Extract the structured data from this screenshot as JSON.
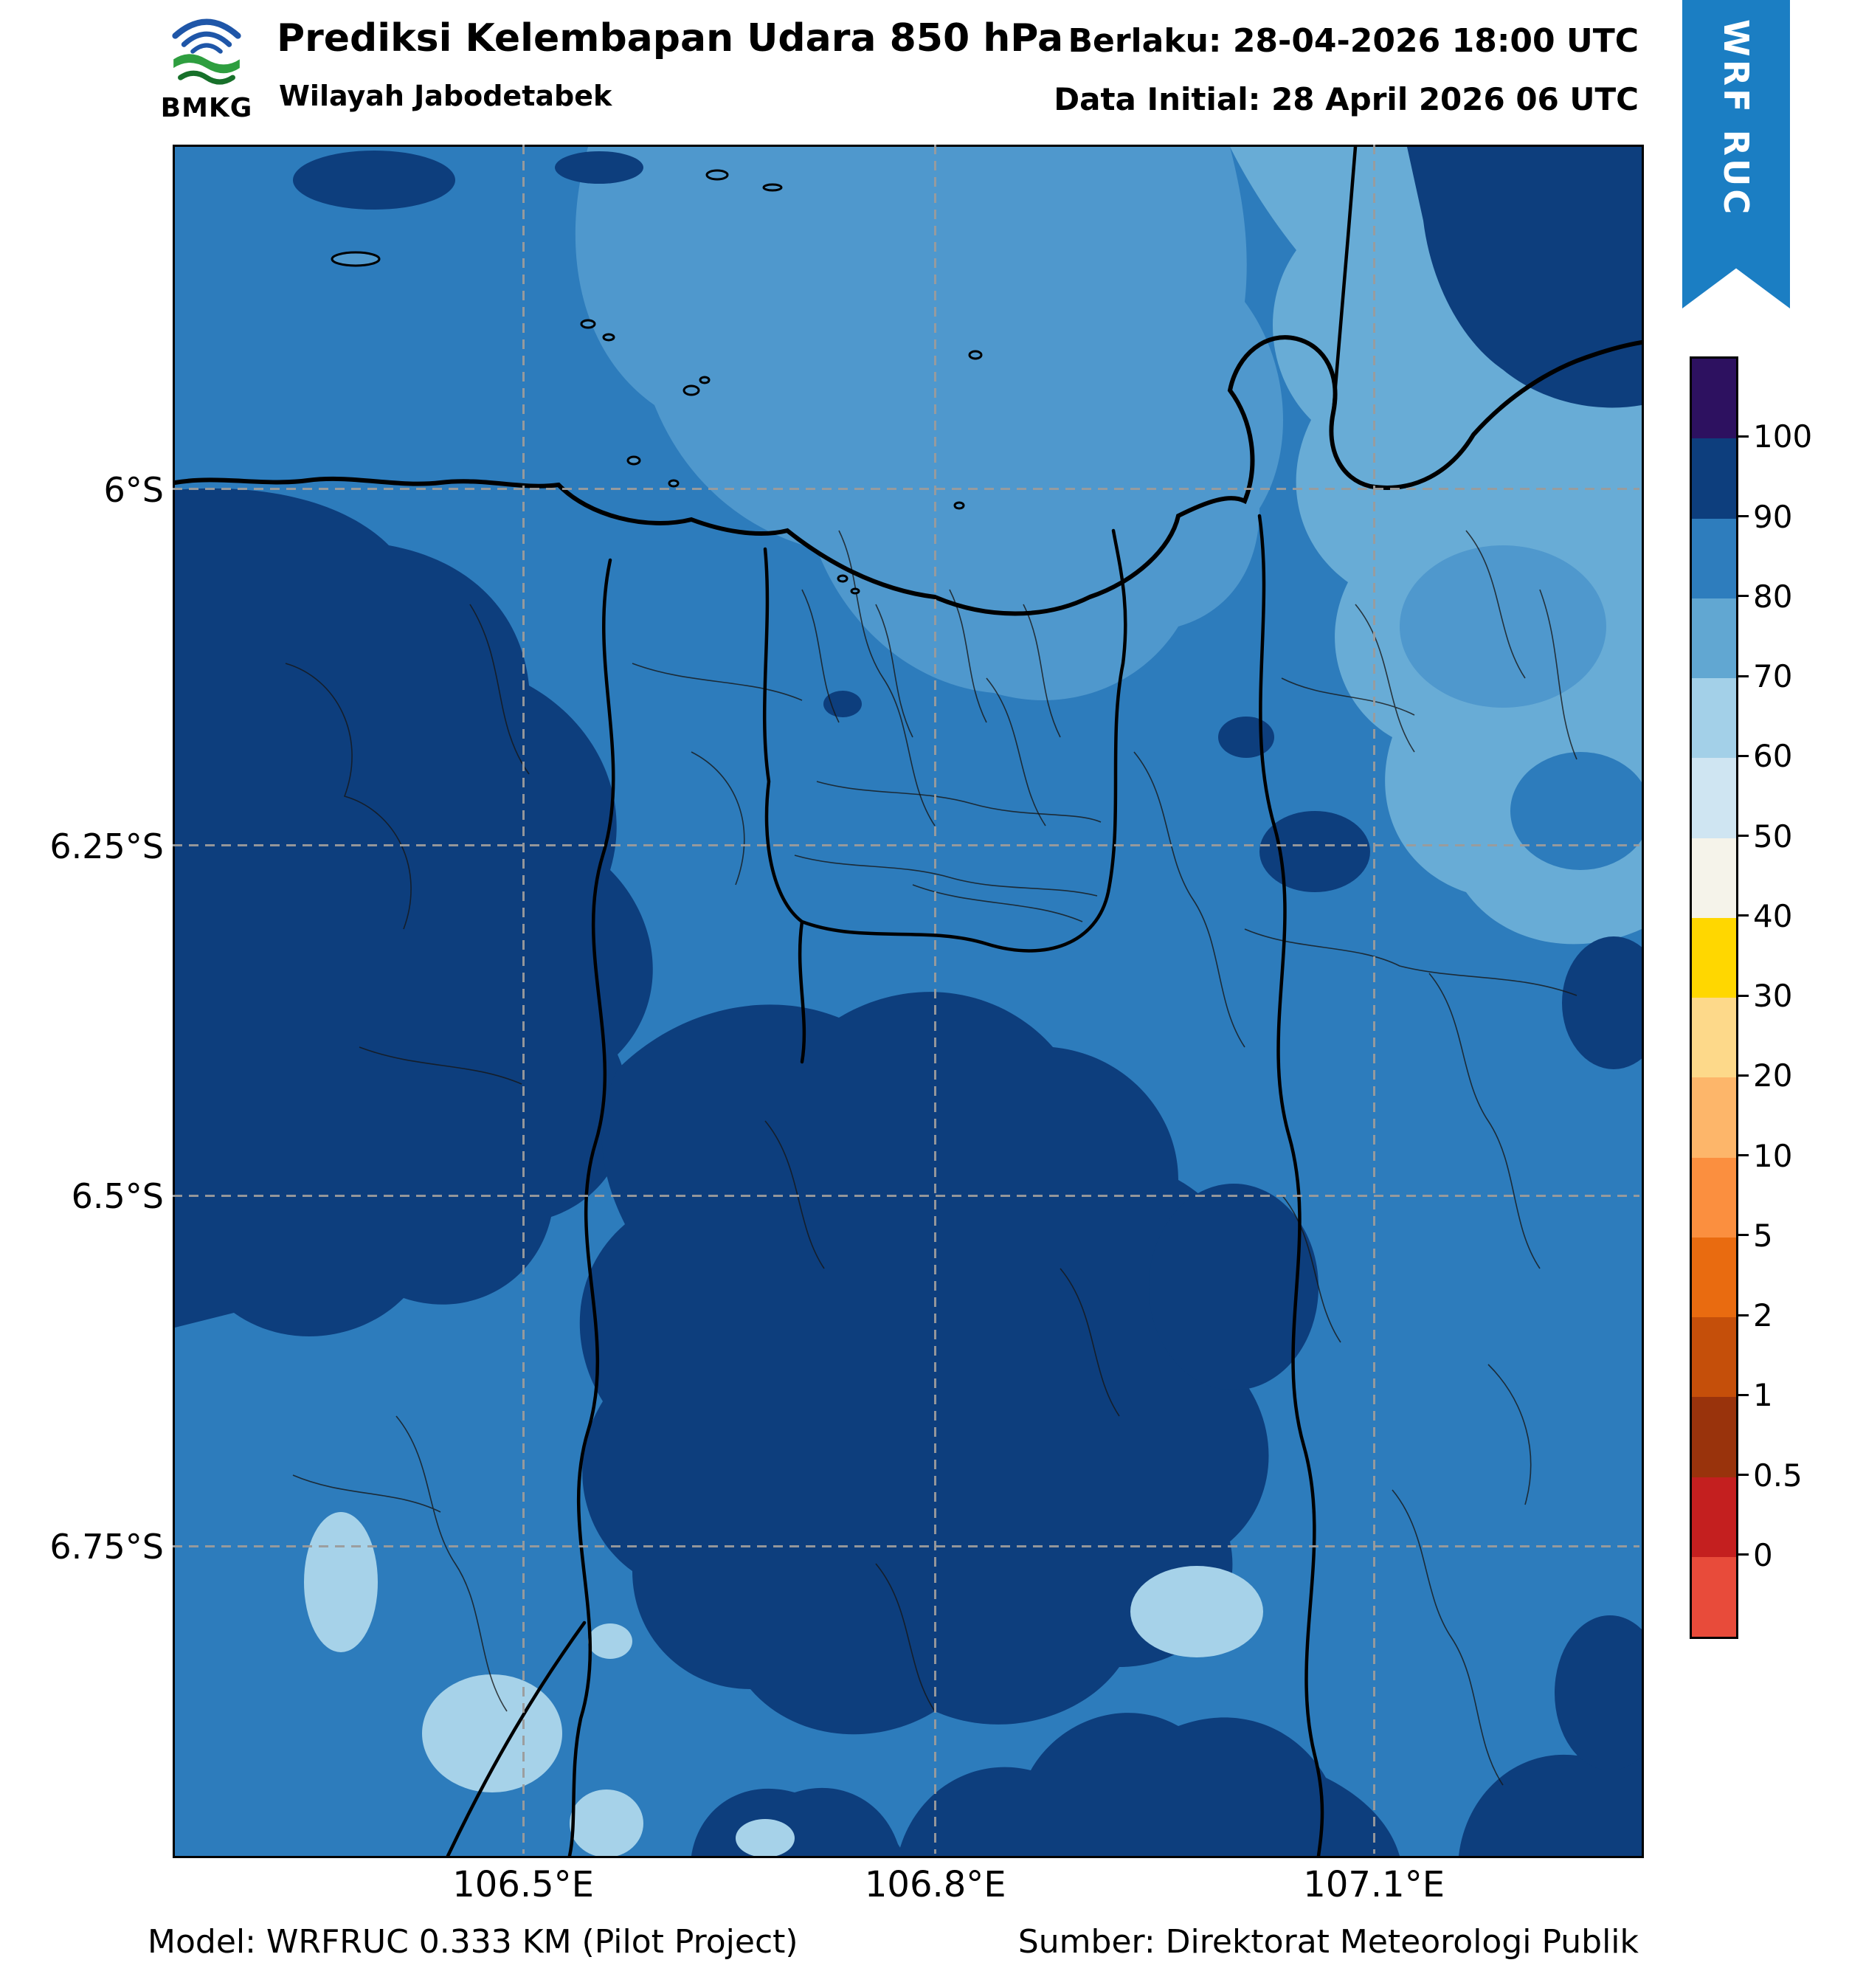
{
  "header": {
    "logo_text": "BMKG",
    "title": "Prediksi Kelembapan Udara 850 hPa",
    "subtitle": "Wilayah Jabodetabek",
    "valid_text": "Berlaku: 28-04-2026 18:00 UTC",
    "init_text": "Data Initial: 28 April 2026 06 UTC",
    "ribbon_label": "WRF RUC"
  },
  "footer": {
    "model_text": "Model: WRFRUC 0.333 KM (Pilot Project)",
    "source_text": "Sumber: Direktorat Meteorologi Publik"
  },
  "map": {
    "x_ticks": [
      {
        "label": "106.5°E",
        "pos": 0.239
      },
      {
        "label": "106.8°E",
        "pos": 0.52
      },
      {
        "label": "107.1°E",
        "pos": 0.819
      }
    ],
    "y_ticks": [
      {
        "label": "6°S",
        "pos": 0.2015
      },
      {
        "label": "6.25°S",
        "pos": 0.41
      },
      {
        "label": "6.5°S",
        "pos": 0.615
      },
      {
        "label": "6.75°S",
        "pos": 0.82
      }
    ]
  },
  "colorbar": {
    "tick_labels": [
      "100",
      "90",
      "80",
      "70",
      "60",
      "50",
      "40",
      "30",
      "20",
      "10",
      "5",
      "2",
      "1",
      "0.5",
      "0"
    ],
    "segment_colors_top_to_bottom": [
      "#2d1160",
      "#0d3e7d",
      "#2e7dbd",
      "#61a7d2",
      "#a3d0e8",
      "#cfe5f2",
      "#f5f3ea",
      "#ffd700",
      "#fdd98a",
      "#fdb66a",
      "#fb8f3f",
      "#e96b10",
      "#c54f0a",
      "#99330c",
      "#c41f1f",
      "#e84b3a"
    ]
  },
  "colors": {
    "ribbon": "#1b7ec3",
    "land": "#2d7cbc",
    "sea": "#4f98cd",
    "light": "#68acd6",
    "dark": "#0d3e7d",
    "cyan": "#a6d2e9"
  },
  "chart_data": {
    "type": "heatmap",
    "title": "Prediksi Kelembapan Udara 850 hPa",
    "region": "Wilayah Jabodetabek",
    "x_tick_labels": [
      "106.5°E",
      "106.8°E",
      "107.1°E"
    ],
    "y_tick_labels": [
      "6°S",
      "6.25°S",
      "6.5°S",
      "6.75°S"
    ],
    "colorbar_levels": [
      0,
      0.5,
      1,
      2,
      5,
      10,
      20,
      30,
      40,
      50,
      60,
      70,
      80,
      90,
      100
    ],
    "legend_position": "right",
    "grid": "dashed",
    "dominant_value_band": [
      70,
      100
    ]
  }
}
